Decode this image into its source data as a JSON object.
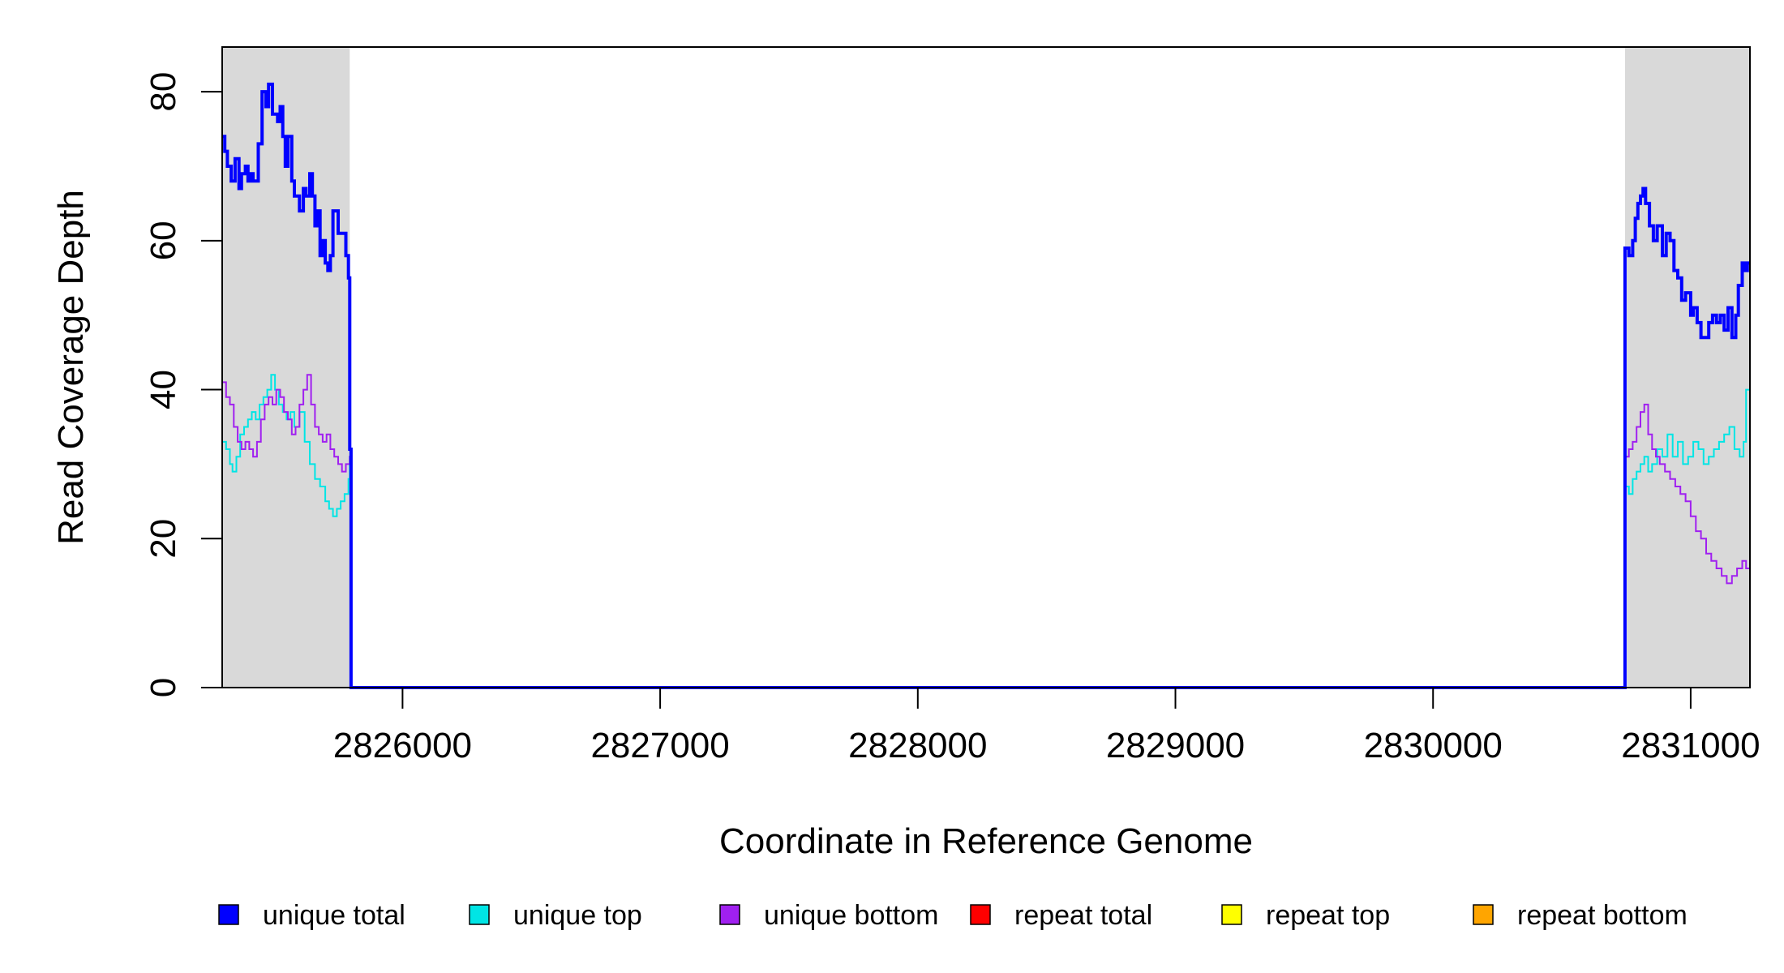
{
  "chart_data": {
    "type": "line",
    "title": "",
    "xlabel": "Coordinate in Reference Genome",
    "ylabel": "Read Coverage Depth",
    "xlim": [
      2825300,
      2831230
    ],
    "ylim": [
      0,
      86
    ],
    "x_ticks": [
      2826000,
      2827000,
      2828000,
      2829000,
      2830000,
      2831000
    ],
    "x_tick_labels": [
      "2826000",
      "2827000",
      "2828000",
      "2829000",
      "2830000",
      "2831000"
    ],
    "y_ticks": [
      0,
      20,
      40,
      60,
      80
    ],
    "y_tick_labels": [
      "0",
      "20",
      "40",
      "60",
      "80"
    ],
    "shaded_regions": [
      [
        2825300,
        2825795
      ],
      [
        2830745,
        2831230
      ]
    ],
    "shade_color": "#d9d9d9",
    "grid": false,
    "legend_position": "bottom",
    "legend": [
      "unique total",
      "unique top",
      "unique bottom",
      "repeat total",
      "repeat top",
      "repeat bottom"
    ],
    "series": [
      {
        "name": "unique total",
        "color": "#0000ff",
        "width": 4,
        "x": [
          2825300,
          2825310,
          2825320,
          2825335,
          2825350,
          2825365,
          2825375,
          2825390,
          2825400,
          2825410,
          2825420,
          2825440,
          2825455,
          2825470,
          2825480,
          2825495,
          2825505,
          2825515,
          2825525,
          2825535,
          2825545,
          2825555,
          2825570,
          2825580,
          2825600,
          2825615,
          2825625,
          2825640,
          2825650,
          2825660,
          2825670,
          2825680,
          2825690,
          2825700,
          2825710,
          2825720,
          2825730,
          2825740,
          2825750,
          2825760,
          2825770,
          2825780,
          2825790,
          2825795,
          2825800,
          2830740,
          2830745,
          2830760,
          2830775,
          2830785,
          2830795,
          2830805,
          2830815,
          2830825,
          2830840,
          2830855,
          2830870,
          2830890,
          2830905,
          2830920,
          2830935,
          2830950,
          2830965,
          2830980,
          2831000,
          2831010,
          2831025,
          2831040,
          2831055,
          2831070,
          2831085,
          2831100,
          2831115,
          2831130,
          2831145,
          2831160,
          2831175,
          2831185,
          2831200,
          2831210,
          2831220,
          2831230
        ],
        "y": [
          74,
          72,
          70,
          68,
          71,
          67,
          69,
          70,
          68,
          69,
          68,
          73,
          80,
          78,
          81,
          77,
          77,
          76,
          78,
          74,
          70,
          74,
          68,
          66,
          64,
          67,
          66,
          69,
          66,
          62,
          64,
          58,
          60,
          57,
          56,
          58,
          64,
          64,
          61,
          61,
          61,
          58,
          55,
          32,
          0,
          0,
          59,
          58,
          60,
          63,
          65,
          66,
          67,
          65,
          62,
          60,
          62,
          58,
          61,
          60,
          56,
          55,
          52,
          53,
          50,
          51,
          49,
          47,
          47,
          49,
          50,
          49,
          50,
          48,
          51,
          47,
          50,
          54,
          57,
          56,
          57,
          57
        ]
      },
      {
        "name": "unique top",
        "color": "#00e5e5",
        "width": 2,
        "x": [
          2825300,
          2825315,
          2825330,
          2825340,
          2825355,
          2825370,
          2825385,
          2825400,
          2825415,
          2825430,
          2825445,
          2825460,
          2825475,
          2825490,
          2825505,
          2825520,
          2825535,
          2825550,
          2825565,
          2825580,
          2825600,
          2825620,
          2825640,
          2825660,
          2825680,
          2825700,
          2825715,
          2825730,
          2825745,
          2825760,
          2825775,
          2825790,
          2825795,
          2825800,
          2830740,
          2830745,
          2830760,
          2830775,
          2830790,
          2830805,
          2830820,
          2830835,
          2830850,
          2830870,
          2830890,
          2830910,
          2830930,
          2830950,
          2830970,
          2830990,
          2831010,
          2831030,
          2831050,
          2831070,
          2831090,
          2831110,
          2831130,
          2831150,
          2831170,
          2831190,
          2831205,
          2831215,
          2831230
        ],
        "y": [
          33,
          32,
          30,
          29,
          31,
          34,
          35,
          36,
          37,
          36,
          38,
          39,
          40,
          42,
          40,
          38,
          37,
          36,
          37,
          35,
          37,
          33,
          30,
          28,
          27,
          25,
          24,
          23,
          24,
          25,
          26,
          28,
          31,
          0,
          0,
          27,
          26,
          28,
          29,
          30,
          31,
          29,
          30,
          32,
          31,
          34,
          31,
          33,
          30,
          31,
          33,
          32,
          30,
          31,
          32,
          33,
          34,
          35,
          32,
          31,
          33,
          40,
          40
        ]
      },
      {
        "name": "unique bottom",
        "color": "#a020f0",
        "width": 2,
        "x": [
          2825300,
          2825315,
          2825330,
          2825345,
          2825360,
          2825375,
          2825390,
          2825405,
          2825420,
          2825435,
          2825450,
          2825465,
          2825480,
          2825495,
          2825510,
          2825525,
          2825540,
          2825555,
          2825570,
          2825585,
          2825600,
          2825615,
          2825630,
          2825645,
          2825660,
          2825675,
          2825690,
          2825705,
          2825720,
          2825735,
          2825750,
          2825765,
          2825780,
          2825795,
          2825800,
          2830740,
          2830745,
          2830760,
          2830775,
          2830790,
          2830805,
          2830820,
          2830835,
          2830850,
          2830865,
          2830880,
          2830900,
          2830920,
          2830940,
          2830960,
          2830980,
          2831000,
          2831020,
          2831040,
          2831060,
          2831080,
          2831100,
          2831120,
          2831140,
          2831160,
          2831180,
          2831200,
          2831215,
          2831230
        ],
        "y": [
          41,
          39,
          38,
          35,
          33,
          32,
          33,
          32,
          31,
          33,
          36,
          38,
          39,
          38,
          40,
          39,
          37,
          36,
          34,
          35,
          38,
          40,
          42,
          38,
          35,
          34,
          33,
          34,
          32,
          31,
          30,
          29,
          30,
          31,
          0,
          0,
          31,
          32,
          33,
          35,
          37,
          38,
          34,
          32,
          31,
          30,
          29,
          28,
          27,
          26,
          25,
          23,
          21,
          20,
          18,
          17,
          16,
          15,
          14,
          15,
          16,
          17,
          16,
          17
        ]
      },
      {
        "name": "repeat total",
        "color": "#ff0000",
        "width": 2,
        "x": [
          2825300,
          2831230
        ],
        "y": [
          0,
          0
        ]
      },
      {
        "name": "repeat top",
        "color": "#ffff00",
        "width": 2,
        "x": [
          2825300,
          2831230
        ],
        "y": [
          0,
          0
        ]
      },
      {
        "name": "repeat bottom",
        "color": "#ffa500",
        "width": 2,
        "x": [
          2825300,
          2831230
        ],
        "y": [
          0,
          0
        ]
      }
    ]
  }
}
